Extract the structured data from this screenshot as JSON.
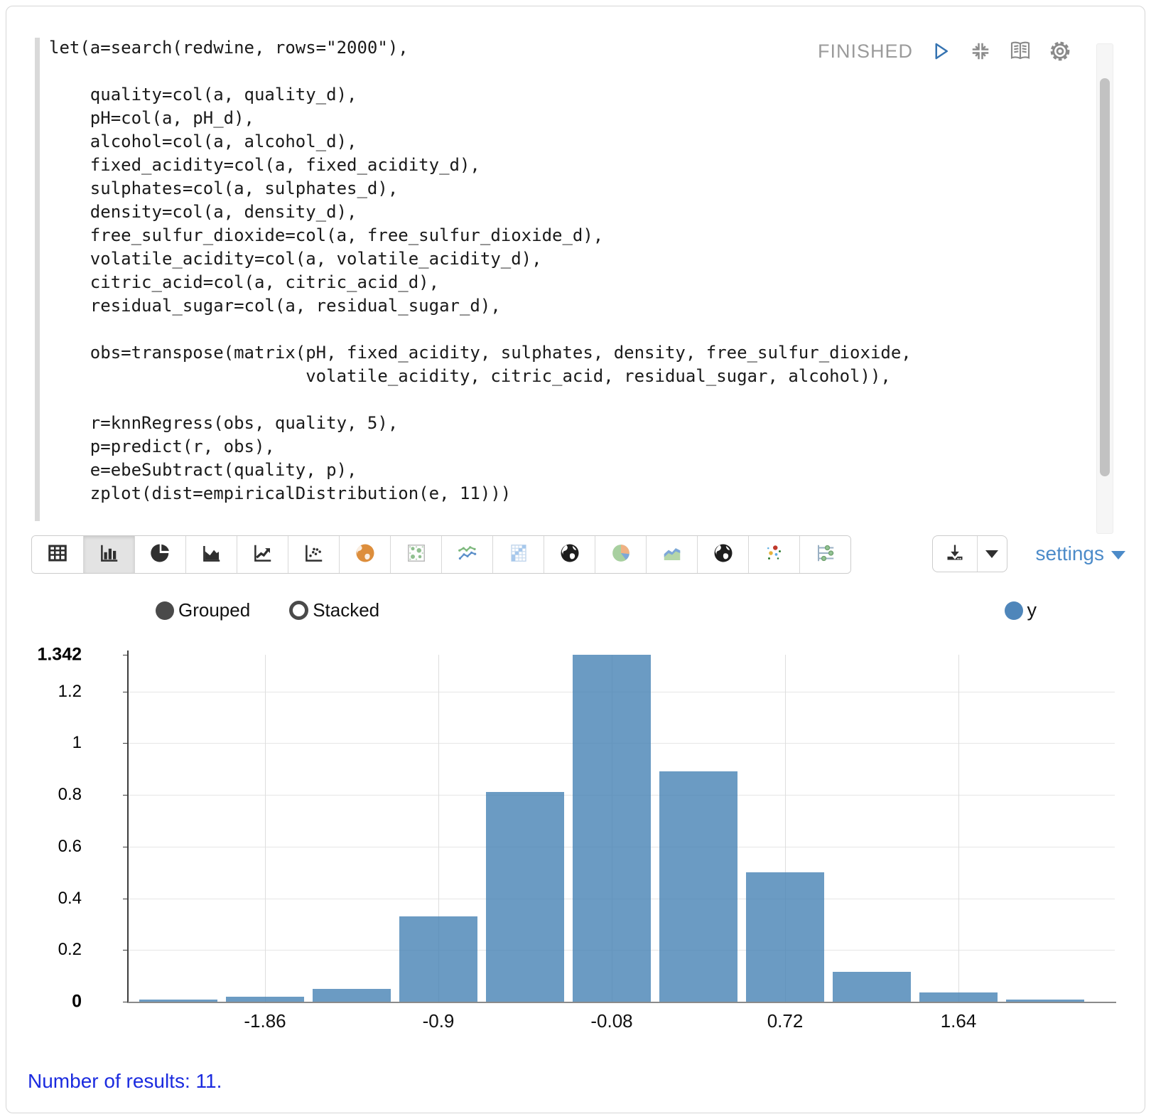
{
  "editor": {
    "status": "FINISHED",
    "code_lines": [
      "let(a=search(redwine, rows=\"2000\"),",
      "",
      "    quality=col(a, quality_d),",
      "    pH=col(a, pH_d),",
      "    alcohol=col(a, alcohol_d),",
      "    fixed_acidity=col(a, fixed_acidity_d),",
      "    sulphates=col(a, sulphates_d),",
      "    density=col(a, density_d),",
      "    free_sulfur_dioxide=col(a, free_sulfur_dioxide_d),",
      "    volatile_acidity=col(a, volatile_acidity_d),",
      "    citric_acid=col(a, citric_acid_d),",
      "    residual_sugar=col(a, residual_sugar_d),",
      "",
      "    obs=transpose(matrix(pH, fixed_acidity, sulphates, density, free_sulfur_dioxide,",
      "                         volatile_acidity, citric_acid, residual_sugar, alcohol)),",
      "",
      "    r=knnRegress(obs, quality, 5),",
      "    p=predict(r, obs),",
      "    e=ebeSubtract(quality, p),",
      "    zplot(dist=empiricalDistribution(e, 11)))"
    ],
    "action_icons": [
      "play-icon",
      "compress-icon",
      "book-icon",
      "gear-icon"
    ]
  },
  "toolbar": {
    "chart_type_buttons": [
      {
        "name": "table",
        "selected": false
      },
      {
        "name": "bar-chart",
        "selected": true
      },
      {
        "name": "pie-chart",
        "selected": false
      },
      {
        "name": "area-chart",
        "selected": false
      },
      {
        "name": "line-chart",
        "selected": false
      },
      {
        "name": "scatter-plot",
        "selected": false
      },
      {
        "name": "globe-orange",
        "selected": false
      },
      {
        "name": "bubble-grid",
        "selected": false
      },
      {
        "name": "multi-line-chart",
        "selected": false
      },
      {
        "name": "heatmap",
        "selected": false
      },
      {
        "name": "globe-dark-1",
        "selected": false
      },
      {
        "name": "pie-chart-color",
        "selected": false
      },
      {
        "name": "area-chart-color",
        "selected": false
      },
      {
        "name": "globe-dark-2",
        "selected": false
      },
      {
        "name": "scatter-color",
        "selected": false
      },
      {
        "name": "parallel-coordinates",
        "selected": false
      }
    ],
    "download_icon": "download-icon",
    "download_caret_icon": "caret-down-icon",
    "settings_label": "settings"
  },
  "chart": {
    "mode_options": [
      {
        "label": "Grouped",
        "selected": true
      },
      {
        "label": "Stacked",
        "selected": false
      }
    ],
    "series_legend": {
      "label": "y",
      "color": "#4f86ba"
    }
  },
  "chart_data": {
    "type": "bar",
    "title": "",
    "xlabel": "",
    "ylabel": "",
    "ylim": [
      0,
      1.342
    ],
    "grid": true,
    "legend_position": "top-right",
    "series": [
      {
        "name": "y",
        "color": "rgba(70,130,180,0.8)"
      }
    ],
    "values": [
      0.007,
      0.02,
      0.05,
      0.33,
      0.81,
      1.342,
      0.89,
      0.5,
      0.115,
      0.035,
      0.008
    ],
    "x_tick_labels": [
      "-1.86",
      "-0.9",
      "-0.08",
      "0.72",
      "1.64"
    ],
    "x_tick_bar_index": [
      1,
      3,
      5,
      7,
      9
    ],
    "y_ticks": [
      {
        "label": "0",
        "value": 0,
        "bold": true,
        "gridline": false
      },
      {
        "label": "0.2",
        "value": 0.2,
        "bold": false,
        "gridline": true
      },
      {
        "label": "0.4",
        "value": 0.4,
        "bold": false,
        "gridline": true
      },
      {
        "label": "0.6",
        "value": 0.6,
        "bold": false,
        "gridline": true
      },
      {
        "label": "0.8",
        "value": 0.8,
        "bold": false,
        "gridline": true
      },
      {
        "label": "1",
        "value": 1,
        "bold": false,
        "gridline": true
      },
      {
        "label": "1.2",
        "value": 1.2,
        "bold": false,
        "gridline": true
      },
      {
        "label": "1.342",
        "value": 1.342,
        "bold": true,
        "gridline": false
      }
    ]
  },
  "footer": {
    "results_text": "Number of results: 11."
  },
  "colors": {
    "bar_fill": "rgba(70,130,180,0.8)",
    "settings_blue": "#4c8bc9",
    "status_gray": "#9b9b9b",
    "results_blue": "#1b2bdf",
    "play_blue": "#3573b1"
  }
}
